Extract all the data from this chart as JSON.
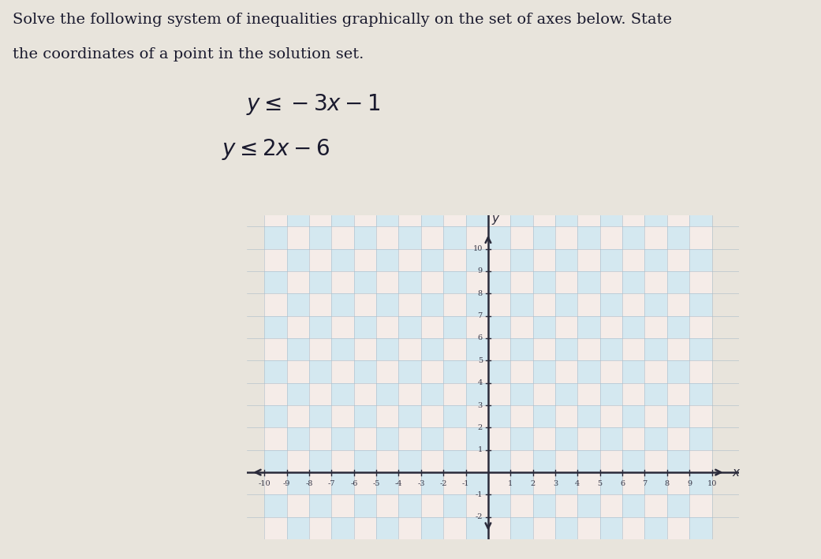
{
  "title_line1": "Solve the following system of inequalities graphically on the set of axes below. State",
  "title_line2": "the coordinates of a point in the solution set.",
  "ineq1_latex": "$y \\leq -3x - 1$",
  "ineq2_latex": "$y \\leq 2x - 6$",
  "xlim": [
    -10,
    10
  ],
  "ylim_display_min": -2,
  "ylim_display_max": 10,
  "bg_color": "#e8e4dc",
  "cell_color1": "#d4e8f0",
  "cell_color2": "#f5ece8",
  "axis_color": "#2a2a3a",
  "text_color": "#1a1a2e",
  "tick_color": "#3a3a4a",
  "font_size_title": 14,
  "font_size_ineq": 20,
  "tick_fontsize": 7
}
